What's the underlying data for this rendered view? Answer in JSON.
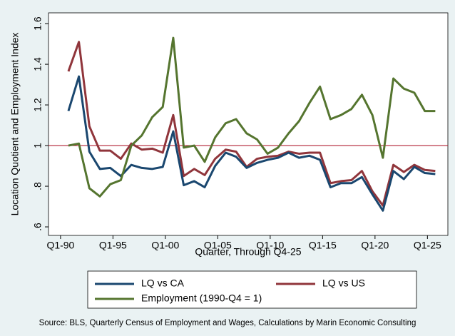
{
  "chart_data": {
    "type": "line",
    "ylabel": "Location Quotient and Employment Index",
    "xlabel": "Quarter, Through Q4-25",
    "source": "Source: BLS, Quarterly Census of Employment and Wages, Calculations by Marin Economic Consulting",
    "x": [
      1990.75,
      1991.75,
      1992.75,
      1993.75,
      1994.75,
      1995.75,
      1996.75,
      1997.75,
      1998.75,
      1999.75,
      2000.75,
      2001.75,
      2002.75,
      2003.75,
      2004.75,
      2005.75,
      2006.75,
      2007.75,
      2008.75,
      2009.75,
      2010.75,
      2011.75,
      2012.75,
      2013.75,
      2014.75,
      2015.75,
      2016.75,
      2017.75,
      2018.75,
      2019.75,
      2020.75,
      2021.75,
      2022.75,
      2023.75,
      2024.75,
      2025.75
    ],
    "xlim": [
      1988.85,
      2026.95
    ],
    "xticks": [
      {
        "value": 1990,
        "label": "Q1-90"
      },
      {
        "value": 1995,
        "label": "Q1-95"
      },
      {
        "value": 2000,
        "label": "Q1-00"
      },
      {
        "value": 2005,
        "label": "Q1-05"
      },
      {
        "value": 2010,
        "label": "Q1-10"
      },
      {
        "value": 2015,
        "label": "Q1-15"
      },
      {
        "value": 2020,
        "label": "Q1-20"
      },
      {
        "value": 2025,
        "label": "Q1-25"
      }
    ],
    "ylim": [
      0.558,
      1.653
    ],
    "yticks": [
      {
        "value": 0.6,
        "label": ".6"
      },
      {
        "value": 0.8,
        "label": ".8"
      },
      1,
      1.2,
      1.4,
      1.6
    ],
    "grid": false,
    "reference_line": {
      "value": 1,
      "color": "#b22234"
    },
    "series": [
      {
        "name": "LQ vs CA",
        "color": "#1a476f",
        "values": [
          1.17,
          1.34,
          0.97,
          0.885,
          0.89,
          0.85,
          0.905,
          0.89,
          0.885,
          0.895,
          1.07,
          0.805,
          0.825,
          0.795,
          0.9,
          0.965,
          0.945,
          0.89,
          0.915,
          0.93,
          0.94,
          0.965,
          0.94,
          0.95,
          0.93,
          0.795,
          0.815,
          0.815,
          0.845,
          0.76,
          0.68,
          0.875,
          0.835,
          0.895,
          0.865,
          0.86
        ]
      },
      {
        "name": "LQ vs US",
        "color": "#90353b",
        "values": [
          1.365,
          1.51,
          1.095,
          0.975,
          0.975,
          0.935,
          1.01,
          0.98,
          0.985,
          0.965,
          1.15,
          0.85,
          0.885,
          0.855,
          0.935,
          0.98,
          0.97,
          0.895,
          0.935,
          0.945,
          0.95,
          0.97,
          0.96,
          0.965,
          0.965,
          0.815,
          0.825,
          0.83,
          0.875,
          0.775,
          0.705,
          0.905,
          0.87,
          0.905,
          0.88,
          0.875
        ]
      },
      {
        "name": "Employment (1990-Q4 = 1)",
        "color": "#55752f",
        "values": [
          1.0,
          1.01,
          0.79,
          0.75,
          0.81,
          0.83,
          1.0,
          1.05,
          1.14,
          1.19,
          1.53,
          0.99,
          1.0,
          0.92,
          1.04,
          1.11,
          1.13,
          1.06,
          1.03,
          0.96,
          0.99,
          1.06,
          1.12,
          1.21,
          1.29,
          1.13,
          1.15,
          1.18,
          1.25,
          1.15,
          0.94,
          1.33,
          1.28,
          1.26,
          1.17,
          1.17
        ]
      }
    ]
  }
}
